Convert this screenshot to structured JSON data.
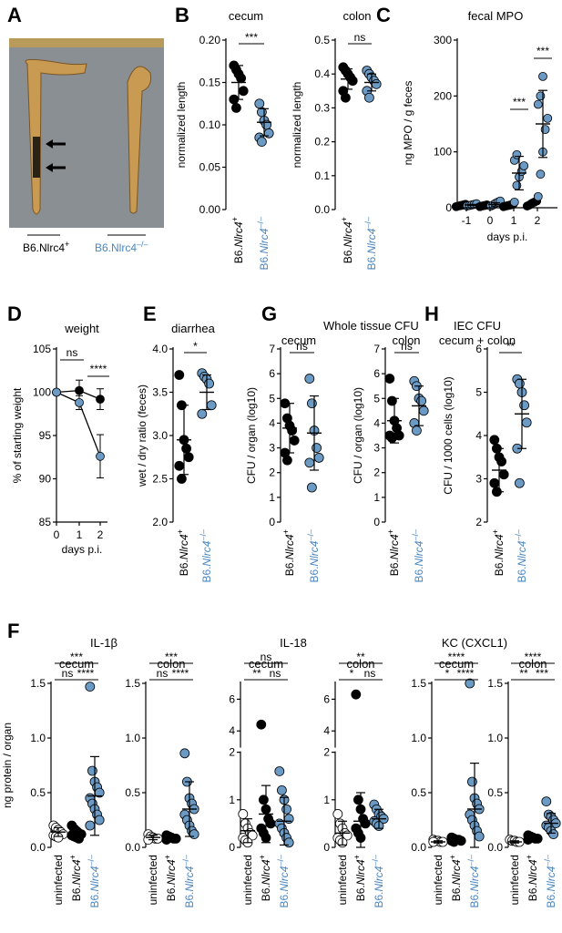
{
  "colors": {
    "black_group": "#000000",
    "blue_group": "#6b9ac4",
    "open_group": "#ffffff",
    "ruler": "#b89a5a"
  },
  "panel_letters": {
    "A": "A",
    "B": "B",
    "C": "C",
    "D": "D",
    "E": "E",
    "G": "G",
    "H": "H",
    "F": "F"
  },
  "photo": {
    "label_black": "B6.Nlrc4",
    "label_black_sup": "+",
    "label_blue": "B6.Nlrc4",
    "label_blue_sup": "–/–"
  },
  "group_labels": {
    "uninfected": "uninfected",
    "nlrc4_plus": "B6.Nlrc4",
    "nlrc4_plus_sup": "+",
    "nlrc4_ko": "B6.Nlrc4",
    "nlrc4_ko_sup": "–/–"
  },
  "titles": {
    "whole_tissue": "Whole tissue CFU",
    "iec_cfu": "IEC CFU",
    "il1b": "IL-1β",
    "il18": "IL-18",
    "kc": "KC (CXCL1)"
  },
  "chart_data": [
    {
      "id": "B_cecum",
      "type": "scatter",
      "title": "cecum",
      "ylabel": "normalized length",
      "ylim": [
        0,
        0.2
      ],
      "ticks": [
        "0.00",
        "0.05",
        "0.10",
        "0.15",
        "0.20"
      ],
      "groups": [
        {
          "name": "B6.Nlrc4+",
          "color": "black",
          "values": [
            0.17,
            0.165,
            0.16,
            0.155,
            0.14,
            0.13,
            0.12
          ],
          "mean": 0.15,
          "sd": 0.02
        },
        {
          "name": "B6.Nlrc4-/-",
          "color": "blue",
          "values": [
            0.125,
            0.115,
            0.105,
            0.1,
            0.09,
            0.085,
            0.08
          ],
          "mean": 0.103,
          "sd": 0.016
        }
      ],
      "sig": [
        {
          "pair": [
            0,
            1
          ],
          "label": "***"
        }
      ]
    },
    {
      "id": "B_colon",
      "type": "scatter",
      "title": "colon",
      "ylabel": "normalized length",
      "ylim": [
        0,
        0.5
      ],
      "ticks": [
        "0.0",
        "0.1",
        "0.2",
        "0.3",
        "0.4",
        "0.5"
      ],
      "groups": [
        {
          "name": "B6.Nlrc4+",
          "color": "black",
          "values": [
            0.42,
            0.41,
            0.4,
            0.39,
            0.38,
            0.35,
            0.33
          ],
          "mean": 0.385,
          "sd": 0.03
        },
        {
          "name": "B6.Nlrc4-/-",
          "color": "blue",
          "values": [
            0.41,
            0.4,
            0.39,
            0.38,
            0.37,
            0.35,
            0.33
          ],
          "mean": 0.375,
          "sd": 0.025
        }
      ],
      "sig": [
        {
          "pair": [
            0,
            1
          ],
          "label": "ns"
        }
      ]
    },
    {
      "id": "C",
      "type": "scatter",
      "title": "fecal MPO",
      "ylabel": "ng MPO / g feces",
      "xlabel": "days p.i.",
      "ylim": [
        0,
        300
      ],
      "ticks": [
        "0",
        "100",
        "200",
        "300"
      ],
      "xticks": [
        "-1",
        "0",
        "1",
        "2"
      ],
      "groups": [
        {
          "name": "-1 black",
          "color": "black",
          "values": [
            2,
            3,
            4,
            5,
            6
          ],
          "mean": 4,
          "sd": 1
        },
        {
          "name": "-1 blue",
          "color": "blue",
          "values": [
            3,
            4,
            5,
            6,
            7
          ],
          "mean": 5,
          "sd": 1
        },
        {
          "name": "0 black",
          "color": "black",
          "values": [
            2,
            3,
            4,
            5
          ],
          "mean": 3,
          "sd": 1
        },
        {
          "name": "0 blue",
          "color": "blue",
          "values": [
            3,
            5,
            8,
            10,
            12
          ],
          "mean": 6,
          "sd": 3
        },
        {
          "name": "1 black",
          "color": "black",
          "values": [
            2,
            3,
            4,
            5,
            6
          ],
          "mean": 4,
          "sd": 1
        },
        {
          "name": "1 blue",
          "color": "blue",
          "values": [
            10,
            40,
            55,
            65,
            75,
            85,
            95
          ],
          "mean": 62,
          "sd": 30
        },
        {
          "name": "2 black",
          "color": "black",
          "values": [
            3,
            5,
            8,
            10,
            12
          ],
          "mean": 7,
          "sd": 3
        },
        {
          "name": "2 blue",
          "color": "blue",
          "values": [
            20,
            60,
            100,
            140,
            160,
            185,
            200,
            235
          ],
          "mean": 150,
          "sd": 60
        }
      ],
      "sig": [
        {
          "pair": [
            5,
            5
          ],
          "label": "***"
        },
        {
          "pair": [
            7,
            7
          ],
          "label": "***"
        }
      ]
    },
    {
      "id": "D",
      "type": "line",
      "title": "weight",
      "ylabel": "% of starting weight",
      "xlabel": "days p.i.",
      "ylim": [
        85,
        105
      ],
      "ticks": [
        "85",
        "90",
        "95",
        "100",
        "105"
      ],
      "xticks": [
        "0",
        "1",
        "2"
      ],
      "series": [
        {
          "name": "B6.Nlrc4+",
          "color": "black",
          "x": [
            0,
            1,
            2
          ],
          "y": [
            100,
            100.2,
            99.2
          ],
          "sd": [
            0,
            1.2,
            1.2
          ]
        },
        {
          "name": "B6.Nlrc4-/-",
          "color": "blue",
          "x": [
            0,
            1,
            2
          ],
          "y": [
            100,
            98.8,
            92.6
          ],
          "sd": [
            0,
            0.8,
            2.5
          ]
        }
      ],
      "sig": [
        {
          "label": "ns",
          "at": 1
        },
        {
          "label": "****",
          "at": 2
        }
      ]
    },
    {
      "id": "E",
      "type": "scatter",
      "title": "diarrhea",
      "ylabel": "wet / dry ratio (feces)",
      "ylim": [
        2.0,
        4.0
      ],
      "ticks": [
        "2.0",
        "2.5",
        "3.0",
        "3.5",
        "4.0"
      ],
      "groups": [
        {
          "name": "B6.Nlrc4+",
          "color": "black",
          "values": [
            3.7,
            3.35,
            2.95,
            2.85,
            2.75,
            2.65,
            2.5
          ],
          "mean": 2.95,
          "sd": 0.4
        },
        {
          "name": "B6.Nlrc4-/-",
          "color": "blue",
          "values": [
            3.72,
            3.68,
            3.65,
            3.6,
            3.35,
            3.25
          ],
          "mean": 3.5,
          "sd": 0.2
        }
      ],
      "sig": [
        {
          "pair": [
            0,
            1
          ],
          "label": "*"
        }
      ]
    },
    {
      "id": "G_cecum",
      "type": "scatter",
      "title": "cecum",
      "ylabel": "CFU / organ (log10)",
      "ylim": [
        0,
        7
      ],
      "ticks": [
        "0",
        "1",
        "2",
        "3",
        "4",
        "5",
        "6",
        "7"
      ],
      "groups": [
        {
          "name": "B6.Nlrc4+",
          "color": "black",
          "values": [
            4.8,
            4.2,
            3.9,
            3.7,
            3.3,
            2.8,
            2.5
          ],
          "mean": 3.8,
          "sd": 1.0
        },
        {
          "name": "B6.Nlrc4-/-",
          "color": "blue",
          "values": [
            5.8,
            4.8,
            3.7,
            3.0,
            2.6,
            2.4,
            1.4
          ],
          "mean": 3.6,
          "sd": 1.5
        }
      ],
      "sig": [
        {
          "pair": [
            0,
            1
          ],
          "label": "ns"
        }
      ]
    },
    {
      "id": "G_colon",
      "type": "scatter",
      "title": "colon",
      "ylabel": "CFU / organ (log10)",
      "ylim": [
        0,
        7
      ],
      "ticks": [
        "0",
        "1",
        "2",
        "3",
        "4",
        "5",
        "6",
        "7"
      ],
      "groups": [
        {
          "name": "B6.Nlrc4+",
          "color": "black",
          "values": [
            5.8,
            4.9,
            4.1,
            3.8,
            3.5,
            3.5,
            3.4
          ],
          "mean": 4.1,
          "sd": 0.9
        },
        {
          "name": "B6.Nlrc4-/-",
          "color": "blue",
          "values": [
            5.7,
            5.5,
            5.0,
            4.9,
            4.5,
            4.0,
            3.7
          ],
          "mean": 4.7,
          "sd": 0.8
        }
      ],
      "sig": [
        {
          "pair": [
            0,
            1
          ],
          "label": "ns"
        }
      ]
    },
    {
      "id": "H",
      "type": "scatter",
      "title": "cecum + colon",
      "ylabel": "CFU / 1000 cells (log10)",
      "ylim": [
        2,
        6
      ],
      "ticks": [
        "2",
        "3",
        "4",
        "5",
        "6"
      ],
      "groups": [
        {
          "name": "B6.Nlrc4+",
          "color": "black",
          "values": [
            3.9,
            3.7,
            3.5,
            3.4,
            3.1,
            2.9,
            2.7
          ],
          "mean": 3.2,
          "sd": 0.5
        },
        {
          "name": "B6.Nlrc4-/-",
          "color": "blue",
          "values": [
            5.3,
            5.2,
            5.0,
            4.7,
            4.3,
            3.7,
            2.9
          ],
          "mean": 4.5,
          "sd": 0.8
        }
      ],
      "sig": [
        {
          "pair": [
            0,
            1
          ],
          "label": "**"
        }
      ]
    },
    {
      "id": "F_il1b_cecum",
      "type": "scatter",
      "title": "cecum",
      "ylabel": "ng protein / organ",
      "ylim": [
        0,
        1.5
      ],
      "ticks": [
        "0.0",
        "0.5",
        "1.0",
        "1.5"
      ],
      "groups": [
        {
          "name": "uninfected",
          "color": "open",
          "values": [
            0.2,
            0.18,
            0.16,
            0.14,
            0.12,
            0.11,
            0.1,
            0.09
          ],
          "mean": 0.14,
          "sd": 0.04
        },
        {
          "name": "B6.Nlrc4+",
          "color": "black",
          "values": [
            0.2,
            0.17,
            0.15,
            0.13,
            0.12,
            0.11,
            0.1,
            0.09,
            0.08
          ],
          "mean": 0.13,
          "sd": 0.04
        },
        {
          "name": "B6.Nlrc4-/-",
          "color": "blue",
          "values": [
            1.47,
            0.7,
            0.6,
            0.55,
            0.5,
            0.45,
            0.4,
            0.35,
            0.3,
            0.25,
            0.2
          ],
          "mean": 0.47,
          "sd": 0.36
        }
      ],
      "sig": [
        {
          "pair": [
            0,
            2
          ],
          "label": "***"
        },
        {
          "pair": [
            0,
            1
          ],
          "label": "ns"
        },
        {
          "pair": [
            1,
            2
          ],
          "label": "****"
        }
      ]
    },
    {
      "id": "F_il1b_colon",
      "type": "scatter",
      "title": "colon",
      "ylim": [
        0,
        1.5
      ],
      "ticks": [
        "0.0",
        "0.5",
        "1.0",
        "1.5"
      ],
      "groups": [
        {
          "name": "uninfected",
          "color": "open",
          "values": [
            0.12,
            0.1,
            0.09,
            0.08,
            0.08,
            0.07
          ],
          "mean": 0.09,
          "sd": 0.02
        },
        {
          "name": "B6.Nlrc4+",
          "color": "black",
          "values": [
            0.11,
            0.1,
            0.09,
            0.08,
            0.08,
            0.07
          ],
          "mean": 0.09,
          "sd": 0.02
        },
        {
          "name": "B6.Nlrc4-/-",
          "color": "blue",
          "values": [
            0.86,
            0.6,
            0.45,
            0.4,
            0.35,
            0.3,
            0.25,
            0.2,
            0.15,
            0.12
          ],
          "mean": 0.35,
          "sd": 0.25
        }
      ],
      "sig": [
        {
          "pair": [
            0,
            2
          ],
          "label": "***"
        },
        {
          "pair": [
            0,
            1
          ],
          "label": "ns"
        },
        {
          "pair": [
            1,
            2
          ],
          "label": "****"
        }
      ]
    },
    {
      "id": "F_il18_cecum",
      "type": "scatter",
      "title": "cecum",
      "ylim": [
        0,
        7
      ],
      "ticks": [
        "0",
        "1",
        "2",
        "4",
        "6"
      ],
      "broken": true,
      "groups": [
        {
          "name": "uninfected",
          "color": "open",
          "values": [
            0.7,
            0.5,
            0.4,
            0.3,
            0.25,
            0.2,
            0.15,
            0.1
          ],
          "mean": 0.35,
          "sd": 0.25
        },
        {
          "name": "B6.Nlrc4+",
          "color": "black",
          "values": [
            4.4,
            1.0,
            0.8,
            0.6,
            0.5,
            0.4,
            0.3,
            0.2
          ],
          "mean": 0.7,
          "sd": 0.6
        },
        {
          "name": "B6.Nlrc4-/-",
          "color": "blue",
          "values": [
            1.6,
            1.2,
            1.0,
            0.8,
            0.6,
            0.5,
            0.4,
            0.3,
            0.2,
            0.1
          ],
          "mean": 0.55,
          "sd": 0.5
        }
      ],
      "sig": [
        {
          "pair": [
            0,
            2
          ],
          "label": "ns"
        },
        {
          "pair": [
            0,
            1
          ],
          "label": "**"
        },
        {
          "pair": [
            1,
            2
          ],
          "label": "ns"
        }
      ]
    },
    {
      "id": "F_il18_colon",
      "type": "scatter",
      "title": "colon",
      "ylim": [
        0,
        7
      ],
      "ticks": [
        "0",
        "1",
        "2",
        "4",
        "6"
      ],
      "broken": true,
      "groups": [
        {
          "name": "uninfected",
          "color": "open",
          "values": [
            0.7,
            0.5,
            0.4,
            0.3,
            0.25,
            0.2,
            0.15,
            0.1
          ],
          "mean": 0.3,
          "sd": 0.25
        },
        {
          "name": "B6.Nlrc4+",
          "color": "black",
          "values": [
            6.3,
            1.0,
            0.8,
            0.6,
            0.5,
            0.4,
            0.3,
            0.2
          ],
          "mean": 0.55,
          "sd": 0.6
        },
        {
          "name": "B6.Nlrc4-/-",
          "color": "blue",
          "values": [
            0.9,
            0.8,
            0.7,
            0.65,
            0.6,
            0.55,
            0.5,
            0.45
          ],
          "mean": 0.6,
          "sd": 0.2
        }
      ],
      "sig": [
        {
          "pair": [
            0,
            2
          ],
          "label": "**"
        },
        {
          "pair": [
            0,
            1
          ],
          "label": "*"
        },
        {
          "pair": [
            1,
            2
          ],
          "label": "ns"
        }
      ]
    },
    {
      "id": "F_kc_cecum",
      "type": "scatter",
      "title": "cecum",
      "ylim": [
        0,
        1.5
      ],
      "ticks": [
        "0.0",
        "0.5",
        "1.0",
        "1.5"
      ],
      "groups": [
        {
          "name": "uninfected",
          "color": "open",
          "values": [
            0.07,
            0.06,
            0.06,
            0.05,
            0.05,
            0.05
          ],
          "mean": 0.05,
          "sd": 0.01
        },
        {
          "name": "B6.Nlrc4+",
          "color": "black",
          "values": [
            0.09,
            0.08,
            0.07,
            0.07,
            0.06,
            0.06,
            0.05
          ],
          "mean": 0.07,
          "sd": 0.01
        },
        {
          "name": "B6.Nlrc4-/-",
          "color": "blue",
          "values": [
            1.5,
            0.6,
            0.45,
            0.4,
            0.35,
            0.3,
            0.25,
            0.2,
            0.15,
            0.1
          ],
          "mean": 0.35,
          "sd": 0.42
        }
      ],
      "sig": [
        {
          "pair": [
            0,
            2
          ],
          "label": "****"
        },
        {
          "pair": [
            0,
            1
          ],
          "label": "*"
        },
        {
          "pair": [
            1,
            2
          ],
          "label": "****"
        }
      ]
    },
    {
      "id": "F_kc_colon",
      "type": "scatter",
      "title": "colon",
      "ylim": [
        0,
        1.5
      ],
      "ticks": [
        "0.0",
        "0.5",
        "1.0",
        "1.5"
      ],
      "groups": [
        {
          "name": "uninfected",
          "color": "open",
          "values": [
            0.07,
            0.06,
            0.06,
            0.05,
            0.05
          ],
          "mean": 0.05,
          "sd": 0.01
        },
        {
          "name": "B6.Nlrc4+",
          "color": "black",
          "values": [
            0.11,
            0.1,
            0.09,
            0.08,
            0.08,
            0.07
          ],
          "mean": 0.09,
          "sd": 0.02
        },
        {
          "name": "B6.Nlrc4-/-",
          "color": "blue",
          "values": [
            0.42,
            0.3,
            0.28,
            0.25,
            0.22,
            0.2,
            0.18,
            0.15,
            0.12
          ],
          "mean": 0.22,
          "sd": 0.09
        }
      ],
      "sig": [
        {
          "pair": [
            0,
            2
          ],
          "label": "****"
        },
        {
          "pair": [
            0,
            1
          ],
          "label": "**"
        },
        {
          "pair": [
            1,
            2
          ],
          "label": "***"
        }
      ]
    }
  ]
}
